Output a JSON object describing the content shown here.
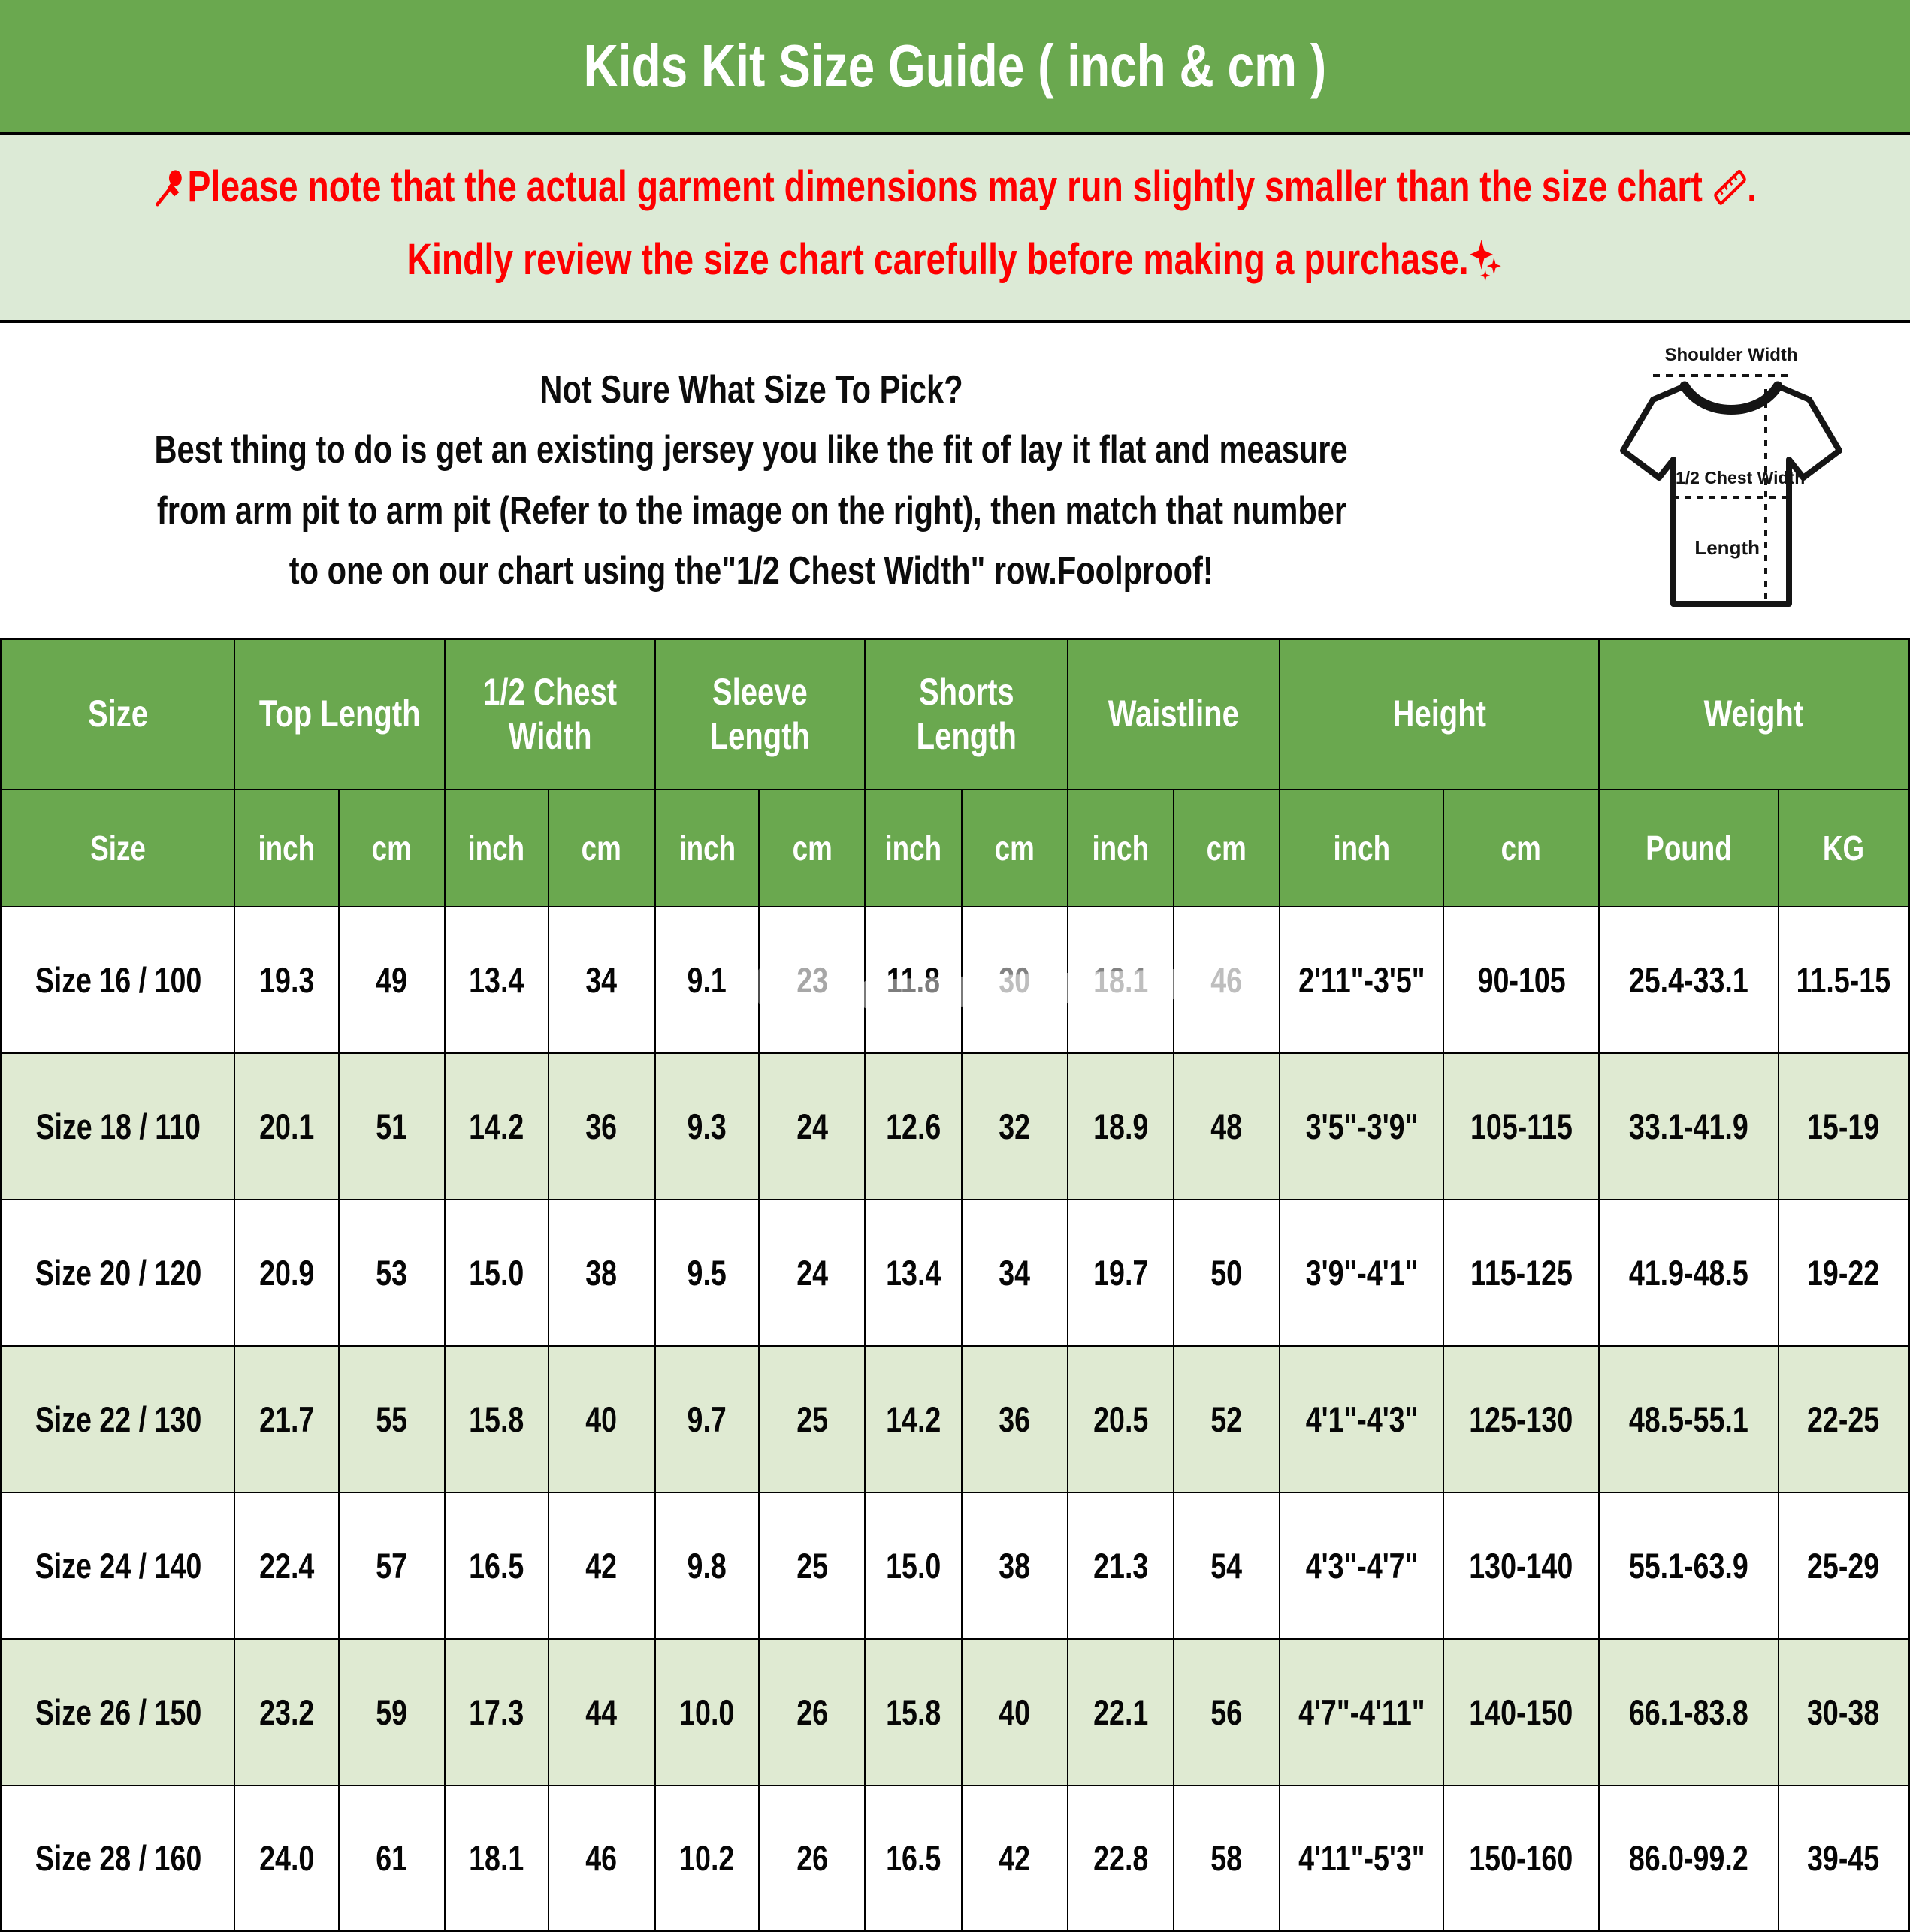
{
  "title": "Kids Kit Size Guide ( inch & cm )",
  "notice": {
    "line1": "Please note that the actual garment dimensions may run slightly smaller than the size chart",
    "period": ".",
    "line2": "Kindly review the size chart carefully before making a purchase.",
    "icons": {
      "pushpin": "pushpin-icon",
      "ruler": "ruler-icon",
      "sparkles": "sparkles-icon"
    }
  },
  "sizing_help": {
    "heading": "Not Sure What Size To Pick?",
    "line1": "Best thing to do is get an existing jersey you like the fit of lay it flat and measure",
    "line2": "from arm pit to arm pit (Refer to the image on the right), then match that number",
    "line3": "to one on our chart using the\"1/2 Chest Width\" row.Foolproof!"
  },
  "diagram": {
    "shoulder_label": "Shoulder Width",
    "chest_label": "1/2 Chest Width",
    "length_label": "Length"
  },
  "colors": {
    "green": "#6aa84f",
    "band_green": "#dcead6",
    "row_green": "#dfead2",
    "red": "#fe0000"
  },
  "table": {
    "group_headers": [
      {
        "span": 1,
        "lines": [
          "Size"
        ]
      },
      {
        "span": 2,
        "lines": [
          "Top Length"
        ]
      },
      {
        "span": 2,
        "lines": [
          "1/2 Chest",
          "Width"
        ]
      },
      {
        "span": 2,
        "lines": [
          "Sleeve",
          "Length"
        ]
      },
      {
        "span": 2,
        "lines": [
          "Shorts",
          "Length"
        ]
      },
      {
        "span": 2,
        "lines": [
          "Waistline"
        ]
      },
      {
        "span": 2,
        "lines": [
          "Height"
        ]
      },
      {
        "span": 2,
        "lines": [
          "Weight"
        ]
      }
    ],
    "unit_headers": [
      "Size",
      "inch",
      "cm",
      "inch",
      "cm",
      "inch",
      "cm",
      "inch",
      "cm",
      "inch",
      "cm",
      "inch",
      "cm",
      "Pound",
      "KG"
    ],
    "col_widths_pct": [
      12.23,
      5.47,
      5.55,
      5.43,
      5.59,
      5.47,
      5.55,
      5.07,
      5.55,
      5.55,
      5.55,
      8.61,
      8.14,
      9.4,
      6.84
    ],
    "rows": [
      [
        "Size 16 / 100",
        "19.3",
        "49",
        "13.4",
        "34",
        "9.1",
        "23",
        "11.8",
        "30",
        "18.1",
        "46",
        "2'11\"-3'5\"",
        "90-105",
        "25.4-33.1",
        "11.5-15"
      ],
      [
        "Size 18 / 110",
        "20.1",
        "51",
        "14.2",
        "36",
        "9.3",
        "24",
        "12.6",
        "32",
        "18.9",
        "48",
        "3'5\"-3'9\"",
        "105-115",
        "33.1-41.9",
        "15-19"
      ],
      [
        "Size 20 / 120",
        "20.9",
        "53",
        "15.0",
        "38",
        "9.5",
        "24",
        "13.4",
        "34",
        "19.7",
        "50",
        "3'9\"-4'1\"",
        "115-125",
        "41.9-48.5",
        "19-22"
      ],
      [
        "Size 22 / 130",
        "21.7",
        "55",
        "15.8",
        "40",
        "9.7",
        "25",
        "14.2",
        "36",
        "20.5",
        "52",
        "4'1\"-4'3\"",
        "125-130",
        "48.5-55.1",
        "22-25"
      ],
      [
        "Size 24 / 140",
        "22.4",
        "57",
        "16.5",
        "42",
        "9.8",
        "25",
        "15.0",
        "38",
        "21.3",
        "54",
        "4'3\"-4'7\"",
        "130-140",
        "55.1-63.9",
        "25-29"
      ],
      [
        "Size 26 / 150",
        "23.2",
        "59",
        "17.3",
        "44",
        "10.0",
        "26",
        "15.8",
        "40",
        "22.1",
        "56",
        "4'7\"-4'11\"",
        "140-150",
        "66.1-83.8",
        "30-38"
      ],
      [
        "Size 28 / 160",
        "24.0",
        "61",
        "18.1",
        "46",
        "10.2",
        "26",
        "16.5",
        "42",
        "22.8",
        "58",
        "4'11\"-5'3\"",
        "150-160",
        "86.0-99.2",
        "39-45"
      ]
    ],
    "faded_cells": {
      "row": 0,
      "cols": [
        6,
        8,
        9,
        10
      ]
    }
  }
}
